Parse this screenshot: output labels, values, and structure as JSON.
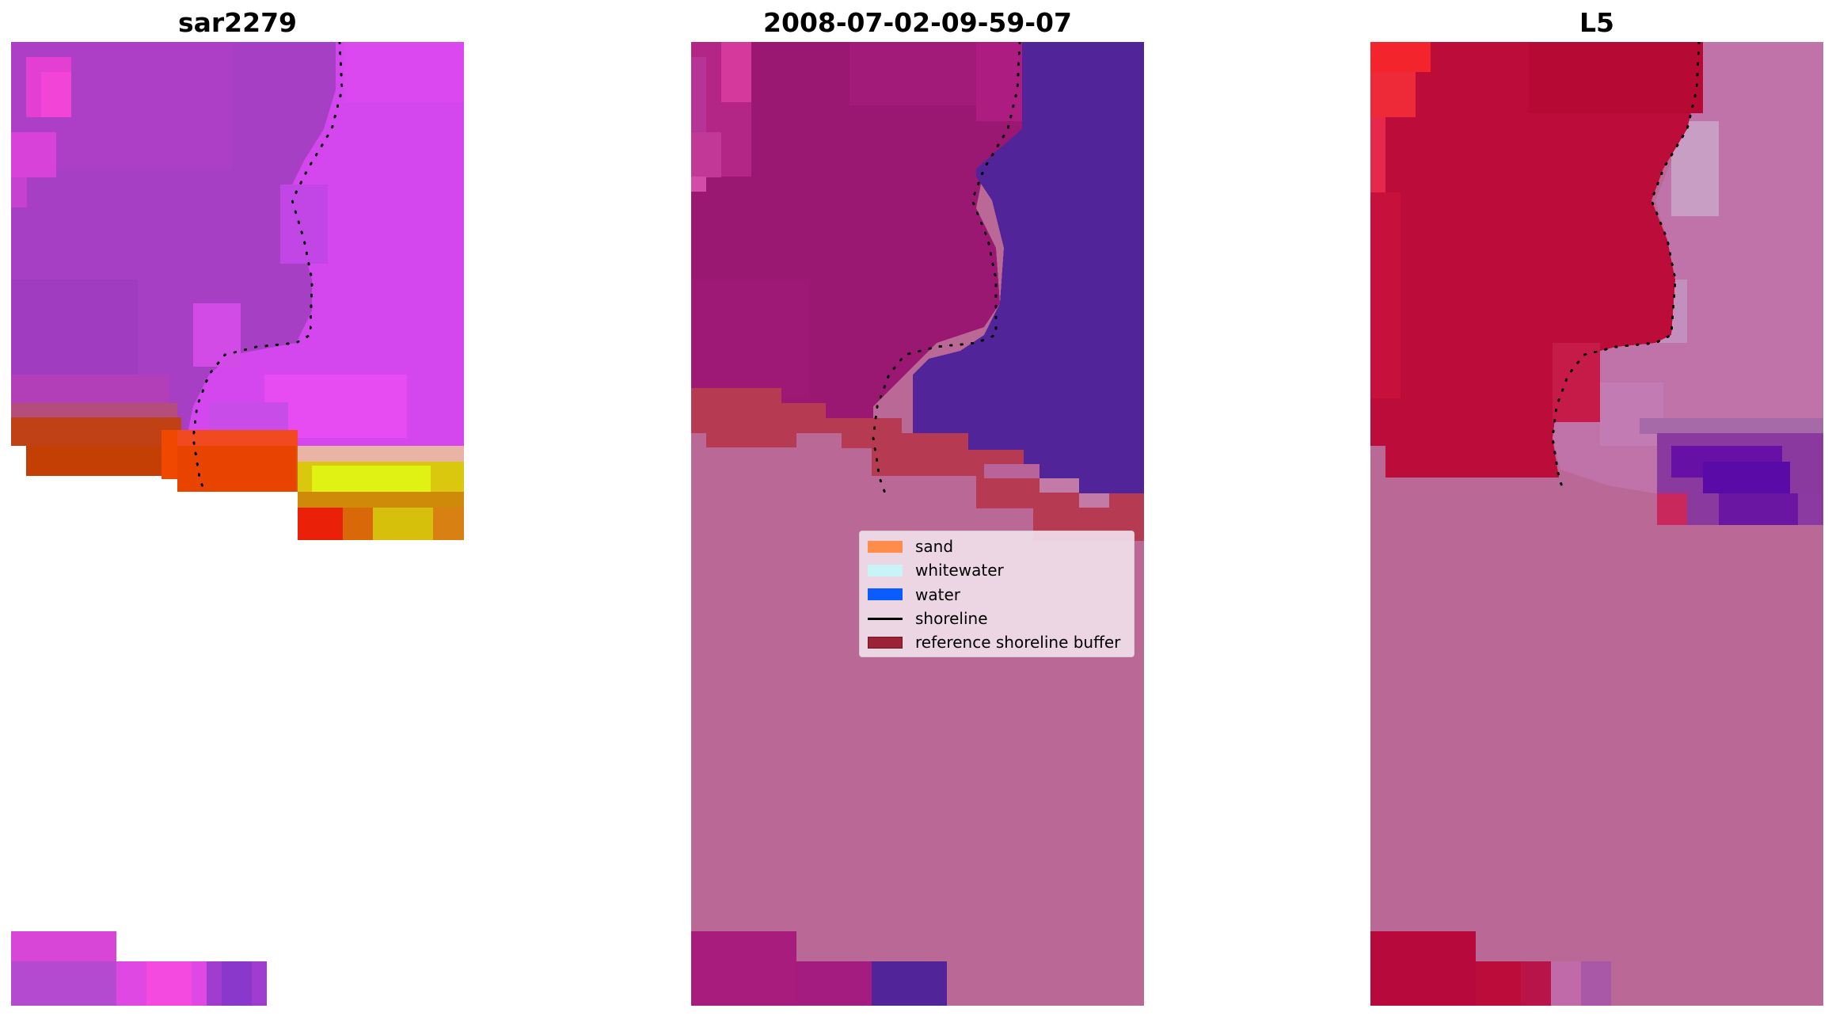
{
  "panels": [
    {
      "id": "sar",
      "title": "sar2279"
    },
    {
      "id": "classified",
      "title": "2008-07-02-09-59-07"
    },
    {
      "id": "index",
      "title": "L5"
    }
  ],
  "legend": {
    "items": [
      {
        "label": "sand",
        "kind": "patch",
        "color": "#ff8c4a",
        "edge": "#ff8c4a"
      },
      {
        "label": "whitewater",
        "kind": "patch",
        "color": "#c8f4f8",
        "edge": "#c8f4f8"
      },
      {
        "label": "water",
        "kind": "patch",
        "color": "#0a5cff",
        "edge": "#0a5cff"
      },
      {
        "label": "shoreline",
        "kind": "line",
        "color": "#000000"
      },
      {
        "label": "reference shoreline buffer",
        "kind": "patch",
        "color": "#9b2335",
        "edge": "#6e1724"
      }
    ]
  },
  "colors": {
    "sar_land": "#a23ec0",
    "sar_water": "#e045ee",
    "sar_sand": "#c83c06",
    "sar_bright": "#d8ec10",
    "class_land": "#9a1772",
    "class_water": "#52249a",
    "class_nodata": "#ba6896",
    "class_buffer": "#b63a52",
    "l5_land": "#bc0c3a",
    "l5_water": "#bf73a9",
    "l5_nodata": "#ba6896",
    "l5_deep": "#5a0aa6",
    "shoreline": "#000000"
  }
}
